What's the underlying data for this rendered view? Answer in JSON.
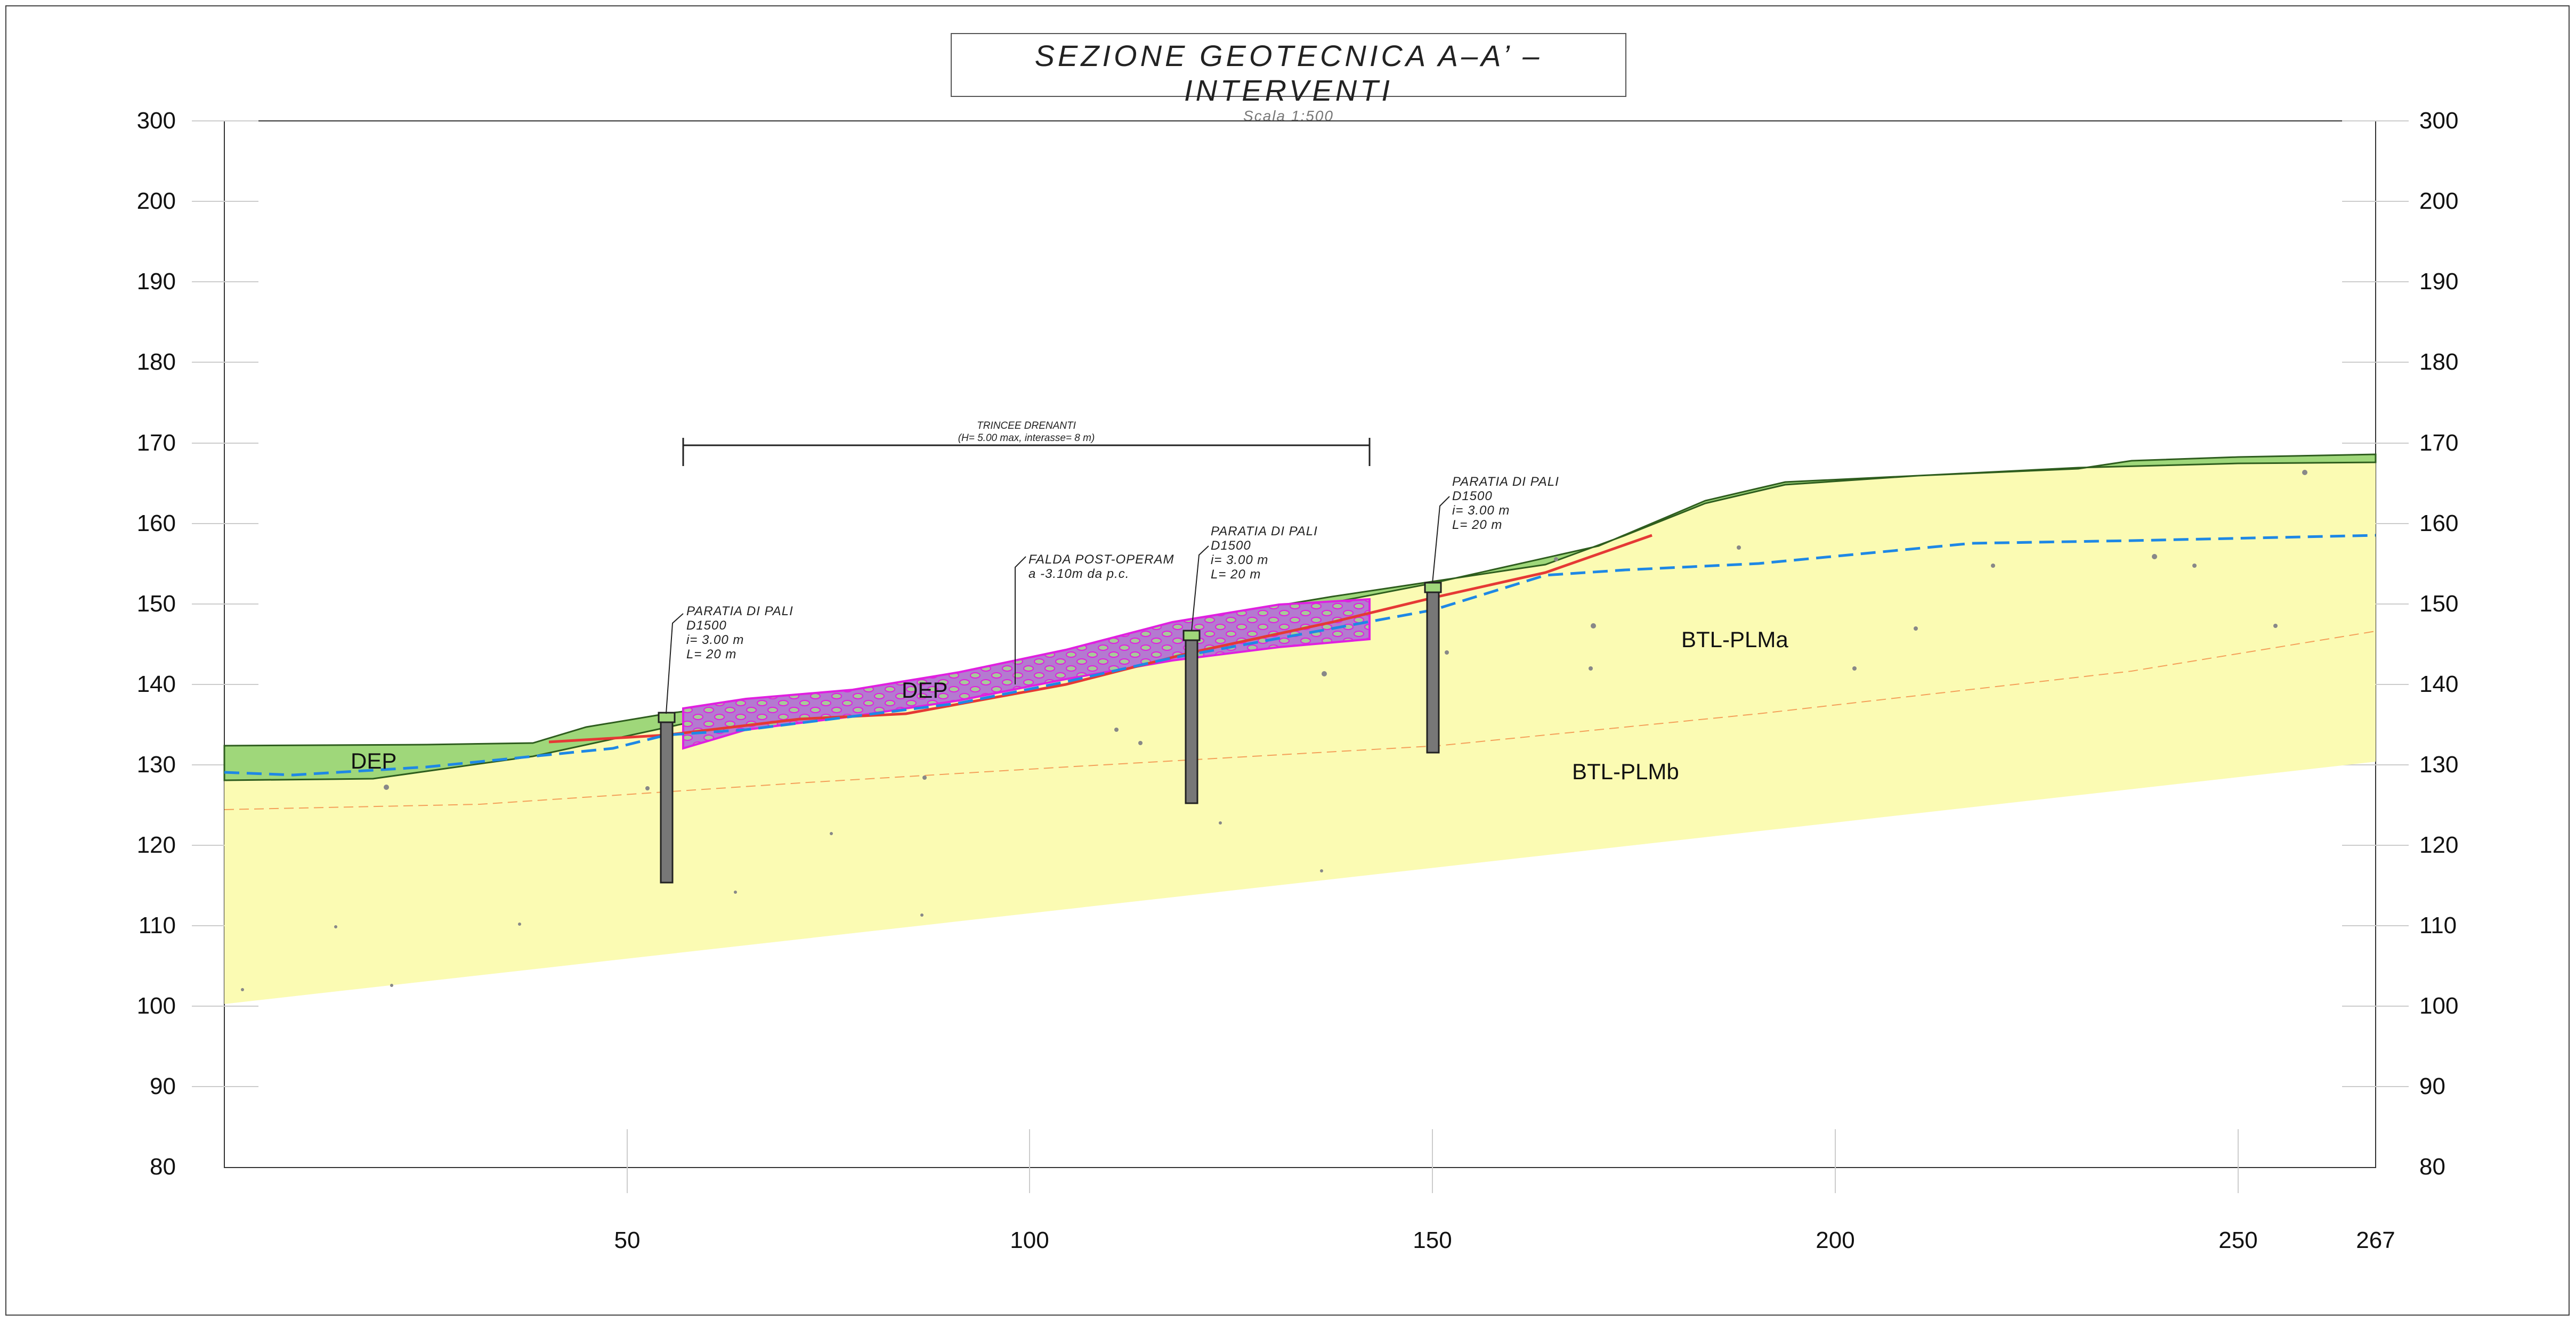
{
  "title": "SEZIONE GEOTECNICA A–A’ – INTERVENTI",
  "scale": "Scala 1:500",
  "axes": {
    "x_ticks": [
      "50",
      "100",
      "150",
      "200",
      "250",
      "267"
    ],
    "y_ticks": [
      "80",
      "90",
      "100",
      "110",
      "120",
      "130",
      "140",
      "150",
      "160",
      "170",
      "180",
      "190",
      "200",
      "300"
    ]
  },
  "units": {
    "dep_left": "DEP",
    "dep_mid": "DEP",
    "btl_plma": "BTL-PLMa",
    "btl_plmb": "BTL-PLMb"
  },
  "trench_note": {
    "line1": "TRINCEE DRENANTI",
    "line2": "(H= 5.00 max, interasse= 8 m)"
  },
  "groundwater_note": {
    "line1": "FALDA POST-OPERAM",
    "line2": "a -3.10m da p.c."
  },
  "piles": [
    {
      "line1": "PARATIA DI PALI",
      "line2": "D1500",
      "line3": "i= 3.00 m",
      "line4": "L= 20 m"
    },
    {
      "line1": "PARATIA DI PALI",
      "line2": "D1500",
      "line3": "i= 3.00 m",
      "line4": "L= 20 m"
    },
    {
      "line1": "PARATIA DI PALI",
      "line2": "D1500",
      "line3": "i= 3.00 m",
      "line4": "L= 20 m"
    }
  ],
  "colors": {
    "dep_fill": "#9fd77a",
    "btl_fill": "#fbfbb3",
    "groundwater": "#1e88e5",
    "intervention_line": "#e53935",
    "drain_fill": "#b46ad4",
    "drain_edge": "#e020e0",
    "pile": "#777777"
  }
}
